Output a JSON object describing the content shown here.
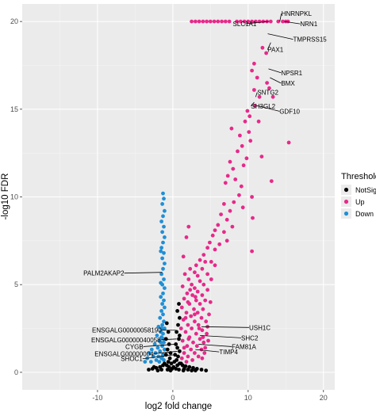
{
  "chart_data": {
    "type": "scatter",
    "title": "",
    "xlabel": "log2 fold change",
    "ylabel": "-log10 FDR",
    "xlim": [
      -20,
      21.5
    ],
    "ylim": [
      -1,
      21
    ],
    "xticks": [
      -10,
      0,
      10,
      20
    ],
    "yticks": [
      0,
      5,
      10,
      15,
      20
    ],
    "grid": true,
    "legend": {
      "title": "Threshold",
      "placement": "right",
      "entries": [
        {
          "label": "NotSig",
          "color": "#000000"
        },
        {
          "label": "Up",
          "color": "#e7298a"
        },
        {
          "label": "Down",
          "color": "#1f8fd6"
        }
      ]
    },
    "series": [
      {
        "name": "Up",
        "color": "#e7298a",
        "points": [
          [
            2.5,
            20
          ],
          [
            3,
            20
          ],
          [
            3.5,
            20
          ],
          [
            4,
            20
          ],
          [
            4.5,
            20
          ],
          [
            5,
            20
          ],
          [
            5.5,
            20
          ],
          [
            6,
            20
          ],
          [
            6.5,
            20
          ],
          [
            7,
            20
          ],
          [
            7.5,
            20
          ],
          [
            8.5,
            20
          ],
          [
            9,
            20
          ],
          [
            9.5,
            20
          ],
          [
            10,
            20
          ],
          [
            10.5,
            20
          ],
          [
            11,
            20
          ],
          [
            11.5,
            20
          ],
          [
            12,
            20
          ],
          [
            12.5,
            20
          ],
          [
            13,
            20
          ],
          [
            14,
            20
          ],
          [
            14.6,
            20
          ],
          [
            15,
            20
          ],
          [
            15.3,
            20
          ],
          [
            11.9,
            18.5
          ],
          [
            10.5,
            17.2
          ],
          [
            12.4,
            18.2
          ],
          [
            10.8,
            17.6
          ],
          [
            11.2,
            16.8
          ],
          [
            12.5,
            16.5
          ],
          [
            10.8,
            16.1
          ],
          [
            11.5,
            15.7
          ],
          [
            12.8,
            16.2
          ],
          [
            13.3,
            15.7
          ],
          [
            10.9,
            15.2
          ],
          [
            10.2,
            14.6
          ],
          [
            11.4,
            14.3
          ],
          [
            9.9,
            14.9
          ],
          [
            9.6,
            14.3
          ],
          [
            10.1,
            13.7
          ],
          [
            8.9,
            13.5
          ],
          [
            10.3,
            13.2
          ],
          [
            9.2,
            12.9
          ],
          [
            8.6,
            12.6
          ],
          [
            11.8,
            12.3
          ],
          [
            9.8,
            12.2
          ],
          [
            7.8,
            13.9
          ],
          [
            15.4,
            13.1
          ],
          [
            13.1,
            10.9
          ],
          [
            7.6,
            12.0
          ],
          [
            8.0,
            11.6
          ],
          [
            7.3,
            11.2
          ],
          [
            9.4,
            11.8
          ],
          [
            8.3,
            11.0
          ],
          [
            7.0,
            10.8
          ],
          [
            9.1,
            10.6
          ],
          [
            10.5,
            10.0
          ],
          [
            8.8,
            10.1
          ],
          [
            8.1,
            9.7
          ],
          [
            7.6,
            9.2
          ],
          [
            6.8,
            9.6
          ],
          [
            9.3,
            9.4
          ],
          [
            6.4,
            9.0
          ],
          [
            7.2,
            8.7
          ],
          [
            6.0,
            8.4
          ],
          [
            5.6,
            8.1
          ],
          [
            7.9,
            8.3
          ],
          [
            10.6,
            8.8
          ],
          [
            6.8,
            8.0
          ],
          [
            5.3,
            7.8
          ],
          [
            4.9,
            7.4
          ],
          [
            7.2,
            7.5
          ],
          [
            6.2,
            7.3
          ],
          [
            10.5,
            6.9
          ],
          [
            4.6,
            7.1
          ],
          [
            5.6,
            7.0
          ],
          [
            4.1,
            6.7
          ],
          [
            2.1,
            8.3
          ],
          [
            1.8,
            7.7
          ],
          [
            4.3,
            6.3
          ],
          [
            1.4,
            6.6
          ],
          [
            3.6,
            6.4
          ],
          [
            5.1,
            6.3
          ],
          [
            3.1,
            6.1
          ],
          [
            2.3,
            5.9
          ],
          [
            3.9,
            5.9
          ],
          [
            5.6,
            6.1
          ],
          [
            2.9,
            5.7
          ],
          [
            1.6,
            5.6
          ],
          [
            3.3,
            5.5
          ],
          [
            4.6,
            5.6
          ],
          [
            2.1,
            5.3
          ],
          [
            3.6,
            5.2
          ],
          [
            5.1,
            5.3
          ],
          [
            2.5,
            5.0
          ],
          [
            4.1,
            5.0
          ],
          [
            1.3,
            4.9
          ],
          [
            2.9,
            4.8
          ],
          [
            3.3,
            4.6
          ],
          [
            4.6,
            4.7
          ],
          [
            1.9,
            4.5
          ],
          [
            2.6,
            4.4
          ],
          [
            3.9,
            4.4
          ],
          [
            1.5,
            4.2
          ],
          [
            3.1,
            4.1
          ],
          [
            4.3,
            4.1
          ],
          [
            2.2,
            3.9
          ],
          [
            3.6,
            3.9
          ],
          [
            1.2,
            3.7
          ],
          [
            2.8,
            3.6
          ],
          [
            4.0,
            3.6
          ],
          [
            1.8,
            3.4
          ],
          [
            3.3,
            3.4
          ],
          [
            2.4,
            3.2
          ],
          [
            3.8,
            3.1
          ],
          [
            1.4,
            3.0
          ],
          [
            2.9,
            2.9
          ],
          [
            4.4,
            2.9
          ],
          [
            2.0,
            2.7
          ],
          [
            3.4,
            2.7
          ],
          [
            1.1,
            2.5
          ],
          [
            2.5,
            2.5
          ],
          [
            3.9,
            2.4
          ],
          [
            1.7,
            2.3
          ],
          [
            3.1,
            2.2
          ],
          [
            4.5,
            2.2
          ],
          [
            2.2,
            2.0
          ],
          [
            3.6,
            1.9
          ],
          [
            1.3,
            1.8
          ],
          [
            2.7,
            1.7
          ],
          [
            4.1,
            1.7
          ],
          [
            1.9,
            1.5
          ],
          [
            3.2,
            1.5
          ],
          [
            2.4,
            1.3
          ],
          [
            3.8,
            1.3
          ],
          [
            1.5,
            1.1
          ],
          [
            2.9,
            1.1
          ],
          [
            4.3,
            1.4
          ],
          [
            2.0,
            0.9
          ],
          [
            3.4,
            0.9
          ],
          [
            1.2,
            0.8
          ],
          [
            2.6,
            0.7
          ],
          [
            3.9,
            0.8
          ],
          [
            1.8,
            0.6
          ],
          [
            4.0,
            2.0
          ],
          [
            4.6,
            2.6
          ],
          [
            4.8,
            3.3
          ],
          [
            5.0,
            4.0
          ],
          [
            2.0,
            4.0
          ],
          [
            2.9,
            3.3
          ],
          [
            3.5,
            2.5
          ],
          [
            2.1,
            1.9
          ],
          [
            1.5,
            1.4
          ],
          [
            4.2,
            1.1
          ],
          [
            1.7,
            3.1
          ],
          [
            4.7,
            1.8
          ],
          [
            3.0,
            4.3
          ],
          [
            2.3,
            4.7
          ]
        ]
      },
      {
        "name": "Down",
        "color": "#1f8fd6",
        "points": [
          [
            -1.3,
            10.2
          ],
          [
            -1.2,
            9.9
          ],
          [
            -1.4,
            9.6
          ],
          [
            -1.1,
            9.2
          ],
          [
            -1.3,
            8.9
          ],
          [
            -1.5,
            8.6
          ],
          [
            -1.2,
            8.3
          ],
          [
            -1.4,
            8.0
          ],
          [
            -1.1,
            7.7
          ],
          [
            -1.3,
            7.4
          ],
          [
            -1.5,
            7.1
          ],
          [
            -1.2,
            6.8
          ],
          [
            -1.4,
            6.5
          ],
          [
            -1.1,
            6.2
          ],
          [
            -1.3,
            5.9
          ],
          [
            -1.5,
            5.6
          ],
          [
            -1.2,
            5.3
          ],
          [
            -1.4,
            5.0
          ],
          [
            -1.1,
            4.8
          ],
          [
            -1.3,
            4.5
          ],
          [
            -1.6,
            4.3
          ],
          [
            -1.2,
            4.1
          ],
          [
            -1.4,
            3.9
          ],
          [
            -1.1,
            3.7
          ],
          [
            -1.5,
            3.5
          ],
          [
            -1.3,
            3.3
          ],
          [
            -1.7,
            3.1
          ],
          [
            -1.2,
            2.9
          ],
          [
            -1.4,
            2.7
          ],
          [
            -1.9,
            2.6
          ],
          [
            -1.1,
            2.5
          ],
          [
            -1.6,
            2.3
          ],
          [
            -1.3,
            2.2
          ],
          [
            -2.1,
            2.1
          ],
          [
            -1.5,
            2.0
          ],
          [
            -1.8,
            1.8
          ],
          [
            -1.2,
            1.7
          ],
          [
            -2.4,
            1.6
          ],
          [
            -1.4,
            1.5
          ],
          [
            -2.0,
            1.4
          ],
          [
            -1.1,
            1.3
          ],
          [
            -2.8,
            1.3
          ],
          [
            -1.7,
            1.2
          ],
          [
            -2.3,
            1.1
          ],
          [
            -1.3,
            1.0
          ],
          [
            -3.1,
            1.1
          ],
          [
            -1.9,
            0.9
          ],
          [
            -2.6,
            0.9
          ],
          [
            -1.5,
            0.8
          ],
          [
            -3.4,
            0.8
          ],
          [
            -2.2,
            0.7
          ],
          [
            -1.2,
            0.7
          ],
          [
            -2.9,
            0.6
          ],
          [
            -3.7,
            0.6
          ],
          [
            -1.8,
            0.6
          ],
          [
            -1.4,
            0.9
          ],
          [
            -1.6,
            1.7
          ],
          [
            -1.2,
            1.9
          ],
          [
            -1.5,
            2.5
          ],
          [
            -1.6,
            5.1
          ],
          [
            -1.6,
            6.9
          ]
        ]
      },
      {
        "name": "NotSig",
        "color": "#000000",
        "points": [
          [
            0.8,
            3.9
          ],
          [
            0.6,
            3.5
          ],
          [
            0.9,
            3.1
          ],
          [
            0.7,
            2.7
          ],
          [
            0.5,
            2.3
          ],
          [
            0.9,
            2.1
          ],
          [
            0.8,
            1.9
          ],
          [
            0.4,
            1.6
          ],
          [
            0.6,
            1.4
          ],
          [
            0.9,
            1.2
          ],
          [
            0.3,
            1.0
          ],
          [
            0.7,
            0.9
          ],
          [
            0.5,
            0.7
          ],
          [
            0.2,
            0.6
          ],
          [
            0.9,
            0.5
          ],
          [
            0.6,
            0.4
          ],
          [
            0.1,
            0.3
          ],
          [
            0.4,
            0.2
          ],
          [
            0.8,
            0.15
          ],
          [
            -0.8,
            2.8
          ],
          [
            -0.6,
            2.3
          ],
          [
            -0.9,
            1.9
          ],
          [
            -0.5,
            1.6
          ],
          [
            -0.7,
            1.3
          ],
          [
            -0.3,
            1.1
          ],
          [
            -0.9,
            1.0
          ],
          [
            -0.4,
            0.8
          ],
          [
            -0.6,
            0.6
          ],
          [
            -0.2,
            0.5
          ],
          [
            -0.8,
            0.4
          ],
          [
            -0.5,
            0.3
          ],
          [
            -0.1,
            0.2
          ],
          [
            -0.7,
            0.15
          ],
          [
            -0.3,
            0.1
          ],
          [
            1.3,
            0.4
          ],
          [
            1.7,
            0.35
          ],
          [
            2.2,
            0.3
          ],
          [
            2.7,
            0.25
          ],
          [
            3.2,
            0.2
          ],
          [
            3.8,
            0.15
          ],
          [
            4.4,
            0.1
          ],
          [
            1.5,
            0.2
          ],
          [
            2.0,
            0.15
          ],
          [
            2.5,
            0.1
          ],
          [
            1.1,
            0.5
          ],
          [
            1.4,
            0.1
          ],
          [
            3.0,
            0.1
          ],
          [
            -1.3,
            0.4
          ],
          [
            -1.7,
            0.3
          ],
          [
            -2.2,
            0.25
          ],
          [
            -2.7,
            0.2
          ],
          [
            -3.2,
            0.15
          ],
          [
            -1.5,
            0.15
          ],
          [
            -2.0,
            0.1
          ],
          [
            -1.1,
            0.5
          ],
          [
            -2.5,
            0.3
          ]
        ]
      }
    ],
    "labels": [
      {
        "text": "HNRNPKL",
        "x": 14.2,
        "y": 20.0
      },
      {
        "text": "NRN1",
        "x": 14.8,
        "y": 20.0
      },
      {
        "text": "SLC1A1",
        "x": 12.7,
        "y": 20.0
      },
      {
        "text": "TMPRSS15",
        "x": 12.6,
        "y": 19.3
      },
      {
        "text": "PAX1",
        "x": 13.0,
        "y": 18.8
      },
      {
        "text": "NPSR1",
        "x": 12.7,
        "y": 17.3
      },
      {
        "text": "BMX",
        "x": 12.9,
        "y": 16.8
      },
      {
        "text": "SNTG2",
        "x": 11.0,
        "y": 15.7
      },
      {
        "text": "GDF10",
        "x": 11.2,
        "y": 15.2
      },
      {
        "text": "SH3GL2",
        "x": 10.8,
        "y": 15.4
      },
      {
        "text": "PALM2AKAP2",
        "x": -1.4,
        "y": 5.7
      },
      {
        "text": "USH1C",
        "x": 3.8,
        "y": 2.6
      },
      {
        "text": "ENSGALG00000058190",
        "x": 0.4,
        "y": 2.4
      },
      {
        "text": "SHC2",
        "x": 3.6,
        "y": 2.1
      },
      {
        "text": "ENSGALG00000040058",
        "x": 0.5,
        "y": 1.9
      },
      {
        "text": "FAM81A",
        "x": 3.4,
        "y": 1.6
      },
      {
        "text": "CYGB",
        "x": 0.3,
        "y": 1.6
      },
      {
        "text": "TIMP4",
        "x": 3.0,
        "y": 1.3
      },
      {
        "text": "ENSGALG00000004",
        "x": 0.6,
        "y": 1.2
      },
      {
        "text": "SHOC1",
        "x": 0.2,
        "y": 1.0
      }
    ]
  }
}
